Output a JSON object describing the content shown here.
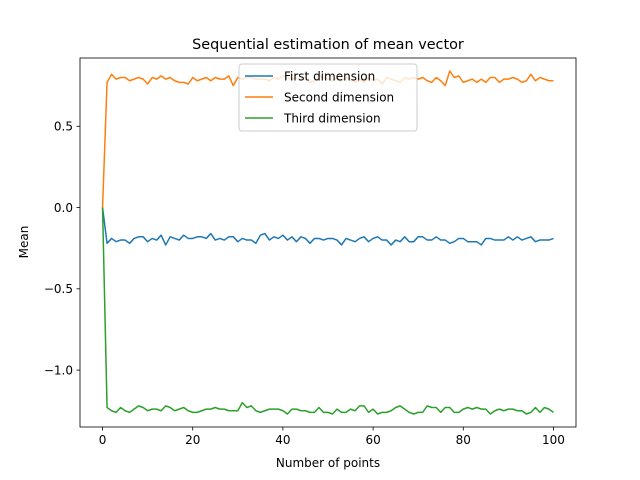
{
  "chart_data": {
    "type": "line",
    "title": "Sequential estimation of mean vector",
    "xlabel": "Number of points",
    "ylabel": "Mean",
    "xlim": [
      -5,
      105
    ],
    "ylim": [
      -1.35,
      0.92
    ],
    "xticks": [
      0,
      20,
      40,
      60,
      80,
      100
    ],
    "xtick_labels": [
      "0",
      "20",
      "40",
      "60",
      "80",
      "100"
    ],
    "yticks": [
      -1.0,
      -0.5,
      0.0,
      0.5
    ],
    "ytick_labels": [
      "−1.0",
      "−0.5",
      "0.0",
      "0.5"
    ],
    "grid": false,
    "legend_position": "top-center",
    "x": [
      0,
      1,
      2,
      3,
      4,
      5,
      6,
      7,
      8,
      9,
      10,
      11,
      12,
      13,
      14,
      15,
      16,
      17,
      18,
      19,
      20,
      21,
      22,
      23,
      24,
      25,
      26,
      27,
      28,
      29,
      30,
      31,
      32,
      33,
      34,
      35,
      36,
      37,
      38,
      39,
      40,
      41,
      42,
      43,
      44,
      45,
      46,
      47,
      48,
      49,
      50,
      51,
      52,
      53,
      54,
      55,
      56,
      57,
      58,
      59,
      60,
      61,
      62,
      63,
      64,
      65,
      66,
      67,
      68,
      69,
      70,
      71,
      72,
      73,
      74,
      75,
      76,
      77,
      78,
      79,
      80,
      81,
      82,
      83,
      84,
      85,
      86,
      87,
      88,
      89,
      90,
      91,
      92,
      93,
      94,
      95,
      96,
      97,
      98,
      99,
      100
    ],
    "series": [
      {
        "name": "First dimension",
        "color": "#1f77b4",
        "values": [
          0.0,
          -0.22,
          -0.19,
          -0.21,
          -0.2,
          -0.2,
          -0.22,
          -0.19,
          -0.18,
          -0.18,
          -0.21,
          -0.19,
          -0.2,
          -0.17,
          -0.23,
          -0.18,
          -0.19,
          -0.2,
          -0.17,
          -0.19,
          -0.19,
          -0.18,
          -0.18,
          -0.19,
          -0.16,
          -0.2,
          -0.19,
          -0.2,
          -0.18,
          -0.18,
          -0.21,
          -0.19,
          -0.2,
          -0.2,
          -0.22,
          -0.17,
          -0.16,
          -0.2,
          -0.18,
          -0.19,
          -0.17,
          -0.2,
          -0.18,
          -0.21,
          -0.18,
          -0.19,
          -0.22,
          -0.19,
          -0.19,
          -0.2,
          -0.19,
          -0.19,
          -0.2,
          -0.23,
          -0.19,
          -0.2,
          -0.21,
          -0.19,
          -0.18,
          -0.21,
          -0.19,
          -0.18,
          -0.2,
          -0.2,
          -0.23,
          -0.2,
          -0.21,
          -0.18,
          -0.21,
          -0.21,
          -0.18,
          -0.18,
          -0.2,
          -0.2,
          -0.18,
          -0.2,
          -0.2,
          -0.22,
          -0.21,
          -0.19,
          -0.19,
          -0.21,
          -0.21,
          -0.21,
          -0.23,
          -0.19,
          -0.19,
          -0.2,
          -0.2,
          -0.2,
          -0.18,
          -0.2,
          -0.18,
          -0.2,
          -0.19,
          -0.18,
          -0.21,
          -0.2,
          -0.2,
          -0.2,
          -0.19
        ]
      },
      {
        "name": "Second dimension",
        "color": "#ff7f0e",
        "values": [
          0.0,
          0.77,
          0.82,
          0.79,
          0.8,
          0.8,
          0.78,
          0.79,
          0.8,
          0.79,
          0.76,
          0.8,
          0.79,
          0.81,
          0.79,
          0.8,
          0.78,
          0.77,
          0.77,
          0.76,
          0.8,
          0.78,
          0.79,
          0.8,
          0.78,
          0.8,
          0.79,
          0.79,
          0.81,
          0.75,
          0.8,
          0.79,
          0.8,
          0.8,
          0.79,
          0.79,
          0.79,
          0.78,
          0.8,
          0.79,
          0.81,
          0.8,
          0.79,
          0.8,
          0.78,
          0.8,
          0.77,
          0.78,
          0.81,
          0.8,
          0.79,
          0.78,
          0.8,
          0.78,
          0.8,
          0.79,
          0.77,
          0.79,
          0.77,
          0.8,
          0.78,
          0.79,
          0.76,
          0.8,
          0.79,
          0.78,
          0.77,
          0.8,
          0.79,
          0.8,
          0.79,
          0.8,
          0.78,
          0.77,
          0.8,
          0.78,
          0.75,
          0.84,
          0.8,
          0.81,
          0.77,
          0.78,
          0.79,
          0.77,
          0.79,
          0.77,
          0.8,
          0.8,
          0.77,
          0.79,
          0.79,
          0.8,
          0.79,
          0.77,
          0.78,
          0.82,
          0.78,
          0.8,
          0.79,
          0.78,
          0.78
        ]
      },
      {
        "name": "Third dimension",
        "color": "#2ca02c",
        "values": [
          0.0,
          -1.23,
          -1.25,
          -1.26,
          -1.23,
          -1.25,
          -1.26,
          -1.24,
          -1.22,
          -1.23,
          -1.25,
          -1.24,
          -1.24,
          -1.25,
          -1.22,
          -1.23,
          -1.25,
          -1.24,
          -1.23,
          -1.25,
          -1.26,
          -1.26,
          -1.25,
          -1.24,
          -1.24,
          -1.23,
          -1.24,
          -1.24,
          -1.25,
          -1.25,
          -1.25,
          -1.2,
          -1.23,
          -1.22,
          -1.25,
          -1.26,
          -1.25,
          -1.24,
          -1.24,
          -1.24,
          -1.25,
          -1.27,
          -1.24,
          -1.24,
          -1.25,
          -1.25,
          -1.26,
          -1.26,
          -1.23,
          -1.26,
          -1.26,
          -1.27,
          -1.24,
          -1.26,
          -1.26,
          -1.24,
          -1.25,
          -1.22,
          -1.22,
          -1.26,
          -1.24,
          -1.27,
          -1.26,
          -1.26,
          -1.25,
          -1.23,
          -1.22,
          -1.24,
          -1.26,
          -1.27,
          -1.26,
          -1.26,
          -1.22,
          -1.23,
          -1.23,
          -1.26,
          -1.23,
          -1.23,
          -1.26,
          -1.26,
          -1.24,
          -1.23,
          -1.24,
          -1.23,
          -1.24,
          -1.24,
          -1.27,
          -1.25,
          -1.24,
          -1.25,
          -1.24,
          -1.24,
          -1.25,
          -1.25,
          -1.27,
          -1.26,
          -1.23,
          -1.26,
          -1.23,
          -1.24,
          -1.26
        ]
      }
    ]
  }
}
